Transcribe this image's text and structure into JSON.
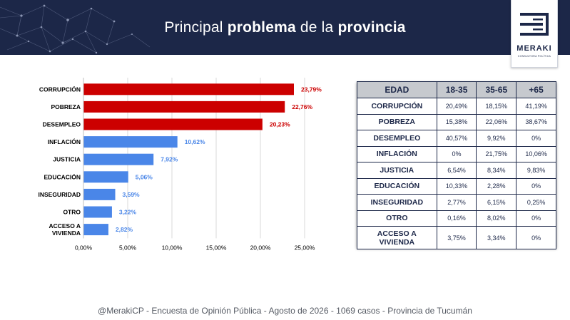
{
  "header": {
    "title_pre": "Principal",
    "title_bold1": "problema",
    "title_mid": "de la",
    "title_bold2": "provincia"
  },
  "logo": {
    "name": "MERAKI",
    "tagline": "CONSULTORA POLÍTICA"
  },
  "colors": {
    "navy": "#1c2748",
    "red": "#cc0000",
    "blue": "#4a86e8",
    "red_label": "#cc0000",
    "blue_label": "#4a86e8"
  },
  "chart_data": {
    "type": "bar",
    "orientation": "horizontal",
    "categories": [
      "CORRUPCIÓN",
      "POBREZA",
      "DESEMPLEO",
      "INFLACIÓN",
      "JUSTICIA",
      "EDUCACIÓN",
      "INSEGURIDAD",
      "OTRO",
      "ACCESO A VIVIENDA"
    ],
    "category_lines": [
      [
        "CORRUPCIÓN"
      ],
      [
        "POBREZA"
      ],
      [
        "DESEMPLEO"
      ],
      [
        "INFLACIÓN"
      ],
      [
        "JUSTICIA"
      ],
      [
        "EDUCACIÓN"
      ],
      [
        "INSEGURIDAD"
      ],
      [
        "OTRO"
      ],
      [
        "ACCESO A",
        "VIVIENDA"
      ]
    ],
    "values": [
      23.79,
      22.76,
      20.23,
      10.62,
      7.92,
      5.06,
      3.59,
      3.22,
      2.82
    ],
    "value_labels": [
      "23,79%",
      "22,76%",
      "20,23%",
      "10,62%",
      "7,92%",
      "5,06%",
      "3,59%",
      "3,22%",
      "2,82%"
    ],
    "bar_colors": [
      "#cc0000",
      "#cc0000",
      "#cc0000",
      "#4a86e8",
      "#4a86e8",
      "#4a86e8",
      "#4a86e8",
      "#4a86e8",
      "#4a86e8"
    ],
    "xlim": [
      0,
      25
    ],
    "x_ticks": [
      0,
      5,
      10,
      15,
      20,
      25
    ],
    "x_tick_labels": [
      "0,00%",
      "5,00%",
      "10,00%",
      "15,00%",
      "20,00%",
      "25,00%"
    ],
    "title": "",
    "xlabel": "",
    "ylabel": "",
    "grid": true,
    "legend": "none"
  },
  "table": {
    "headers": [
      "EDAD",
      "18-35",
      "35-65",
      "+65"
    ],
    "rows": [
      {
        "label": "CORRUPCIÓN",
        "v": [
          "20,49%",
          "18,15%",
          "41,19%"
        ]
      },
      {
        "label": "POBREZA",
        "v": [
          "15,38%",
          "22,06%",
          "38,67%"
        ]
      },
      {
        "label": "DESEMPLEO",
        "v": [
          "40,57%",
          "9,92%",
          "0%"
        ]
      },
      {
        "label": "INFLACIÓN",
        "v": [
          "0%",
          "21,75%",
          "10,06%"
        ]
      },
      {
        "label": "JUSTICIA",
        "v": [
          "6,54%",
          "8,34%",
          "9,83%"
        ]
      },
      {
        "label": "EDUCACIÓN",
        "v": [
          "10,33%",
          "2,28%",
          "0%"
        ]
      },
      {
        "label": "INSEGURIDAD",
        "v": [
          "2,77%",
          "6,15%",
          "0,25%"
        ]
      },
      {
        "label": "OTRO",
        "v": [
          "0,16%",
          "8,02%",
          "0%"
        ]
      },
      {
        "label1": "ACCESO A",
        "label2": "VIVIENDA",
        "v": [
          "3,75%",
          "3,34%",
          "0%"
        ]
      }
    ]
  },
  "footer": "@MerakiCP - Encuesta de Opinión Pública - Agosto de 2026 - 1069 casos - Provincia de Tucumán"
}
